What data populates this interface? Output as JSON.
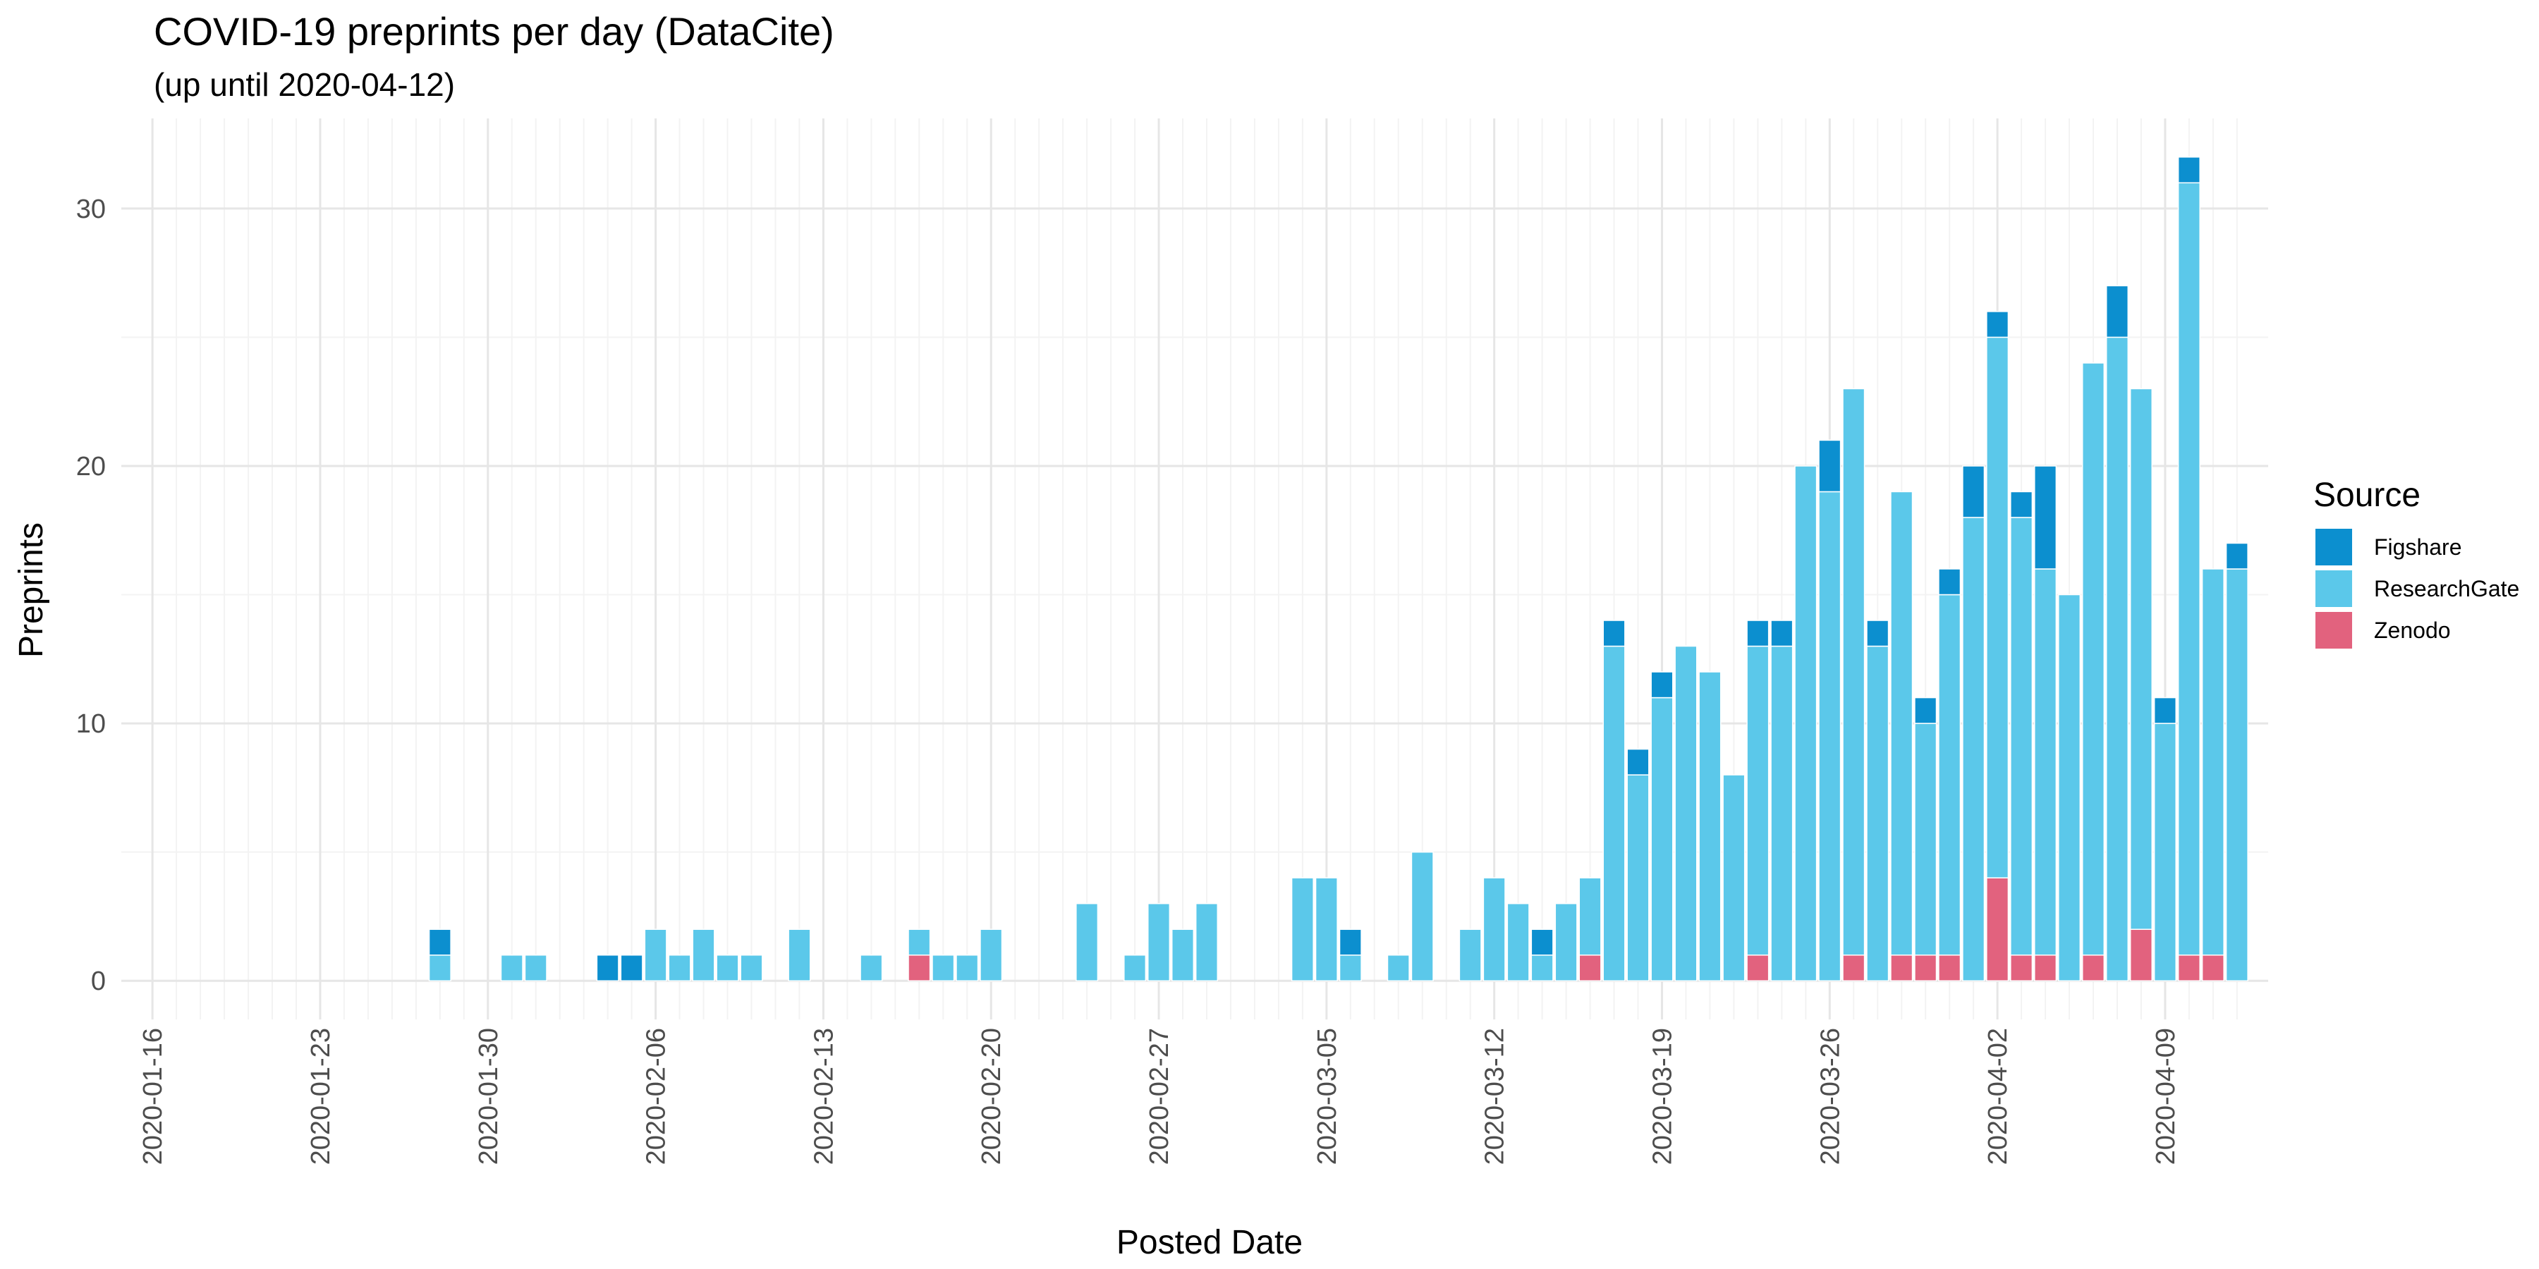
{
  "chart_data": {
    "type": "bar",
    "stacked": true,
    "title": "COVID-19 preprints per day (DataCite)",
    "subtitle": "(up until 2020-04-12)",
    "xlabel": "Posted Date",
    "ylabel": "Preprints",
    "x_range": [
      "2020-01-16",
      "2020-04-12"
    ],
    "ylim": [
      -1.5,
      33.5
    ],
    "y_ticks": [
      0,
      10,
      20,
      30
    ],
    "x_tick_labels": [
      "2020-01-16",
      "2020-01-23",
      "2020-01-30",
      "2020-02-06",
      "2020-02-13",
      "2020-02-20",
      "2020-02-27",
      "2020-03-05",
      "2020-03-12",
      "2020-03-19",
      "2020-03-26",
      "2020-04-02",
      "2020-04-09"
    ],
    "grid": true,
    "legend": {
      "title": "Source",
      "position": "right"
    },
    "series": [
      {
        "name": "Zenodo",
        "color": "#E2627E",
        "points": [
          {
            "date": "2020-02-17",
            "value": 1
          },
          {
            "date": "2020-03-16",
            "value": 1
          },
          {
            "date": "2020-03-23",
            "value": 1
          },
          {
            "date": "2020-03-27",
            "value": 1
          },
          {
            "date": "2020-03-29",
            "value": 1
          },
          {
            "date": "2020-03-30",
            "value": 1
          },
          {
            "date": "2020-03-31",
            "value": 1
          },
          {
            "date": "2020-04-02",
            "value": 4
          },
          {
            "date": "2020-04-03",
            "value": 1
          },
          {
            "date": "2020-04-04",
            "value": 1
          },
          {
            "date": "2020-04-06",
            "value": 1
          },
          {
            "date": "2020-04-08",
            "value": 2
          },
          {
            "date": "2020-04-10",
            "value": 1
          },
          {
            "date": "2020-04-11",
            "value": 1
          }
        ]
      },
      {
        "name": "ResearchGate",
        "color": "#5BC8EA",
        "points": [
          {
            "date": "2020-01-28",
            "value": 1
          },
          {
            "date": "2020-01-31",
            "value": 1
          },
          {
            "date": "2020-02-01",
            "value": 1
          },
          {
            "date": "2020-02-06",
            "value": 2
          },
          {
            "date": "2020-02-07",
            "value": 1
          },
          {
            "date": "2020-02-08",
            "value": 2
          },
          {
            "date": "2020-02-09",
            "value": 1
          },
          {
            "date": "2020-02-10",
            "value": 1
          },
          {
            "date": "2020-02-12",
            "value": 2
          },
          {
            "date": "2020-02-15",
            "value": 1
          },
          {
            "date": "2020-02-17",
            "value": 1
          },
          {
            "date": "2020-02-18",
            "value": 1
          },
          {
            "date": "2020-02-19",
            "value": 1
          },
          {
            "date": "2020-02-20",
            "value": 2
          },
          {
            "date": "2020-02-24",
            "value": 3
          },
          {
            "date": "2020-02-26",
            "value": 1
          },
          {
            "date": "2020-02-27",
            "value": 3
          },
          {
            "date": "2020-02-28",
            "value": 2
          },
          {
            "date": "2020-02-29",
            "value": 3
          },
          {
            "date": "2020-03-04",
            "value": 4
          },
          {
            "date": "2020-03-05",
            "value": 4
          },
          {
            "date": "2020-03-06",
            "value": 1
          },
          {
            "date": "2020-03-08",
            "value": 1
          },
          {
            "date": "2020-03-09",
            "value": 5
          },
          {
            "date": "2020-03-11",
            "value": 2
          },
          {
            "date": "2020-03-12",
            "value": 4
          },
          {
            "date": "2020-03-13",
            "value": 3
          },
          {
            "date": "2020-03-14",
            "value": 1
          },
          {
            "date": "2020-03-15",
            "value": 3
          },
          {
            "date": "2020-03-16",
            "value": 3
          },
          {
            "date": "2020-03-17",
            "value": 13
          },
          {
            "date": "2020-03-18",
            "value": 8
          },
          {
            "date": "2020-03-19",
            "value": 11
          },
          {
            "date": "2020-03-20",
            "value": 13
          },
          {
            "date": "2020-03-21",
            "value": 12
          },
          {
            "date": "2020-03-22",
            "value": 8
          },
          {
            "date": "2020-03-23",
            "value": 12
          },
          {
            "date": "2020-03-24",
            "value": 13
          },
          {
            "date": "2020-03-25",
            "value": 20
          },
          {
            "date": "2020-03-26",
            "value": 19
          },
          {
            "date": "2020-03-27",
            "value": 22
          },
          {
            "date": "2020-03-28",
            "value": 13
          },
          {
            "date": "2020-03-29",
            "value": 18
          },
          {
            "date": "2020-03-30",
            "value": 9
          },
          {
            "date": "2020-03-31",
            "value": 14
          },
          {
            "date": "2020-04-01",
            "value": 18
          },
          {
            "date": "2020-04-02",
            "value": 21
          },
          {
            "date": "2020-04-03",
            "value": 17
          },
          {
            "date": "2020-04-04",
            "value": 15
          },
          {
            "date": "2020-04-05",
            "value": 15
          },
          {
            "date": "2020-04-06",
            "value": 23
          },
          {
            "date": "2020-04-07",
            "value": 25
          },
          {
            "date": "2020-04-08",
            "value": 21
          },
          {
            "date": "2020-04-09",
            "value": 10
          },
          {
            "date": "2020-04-10",
            "value": 30
          },
          {
            "date": "2020-04-11",
            "value": 15
          },
          {
            "date": "2020-04-12",
            "value": 16
          }
        ]
      },
      {
        "name": "Figshare",
        "color": "#0C8FCF",
        "points": [
          {
            "date": "2020-01-28",
            "value": 1
          },
          {
            "date": "2020-02-04",
            "value": 1
          },
          {
            "date": "2020-02-05",
            "value": 1
          },
          {
            "date": "2020-03-06",
            "value": 1
          },
          {
            "date": "2020-03-14",
            "value": 1
          },
          {
            "date": "2020-03-17",
            "value": 1
          },
          {
            "date": "2020-03-18",
            "value": 1
          },
          {
            "date": "2020-03-19",
            "value": 1
          },
          {
            "date": "2020-03-23",
            "value": 1
          },
          {
            "date": "2020-03-24",
            "value": 1
          },
          {
            "date": "2020-03-26",
            "value": 2
          },
          {
            "date": "2020-03-28",
            "value": 1
          },
          {
            "date": "2020-03-30",
            "value": 1
          },
          {
            "date": "2020-03-31",
            "value": 1
          },
          {
            "date": "2020-04-01",
            "value": 2
          },
          {
            "date": "2020-04-02",
            "value": 1
          },
          {
            "date": "2020-04-03",
            "value": 1
          },
          {
            "date": "2020-04-04",
            "value": 4
          },
          {
            "date": "2020-04-07",
            "value": 2
          },
          {
            "date": "2020-04-09",
            "value": 1
          },
          {
            "date": "2020-04-10",
            "value": 1
          },
          {
            "date": "2020-04-12",
            "value": 1
          }
        ]
      }
    ]
  }
}
